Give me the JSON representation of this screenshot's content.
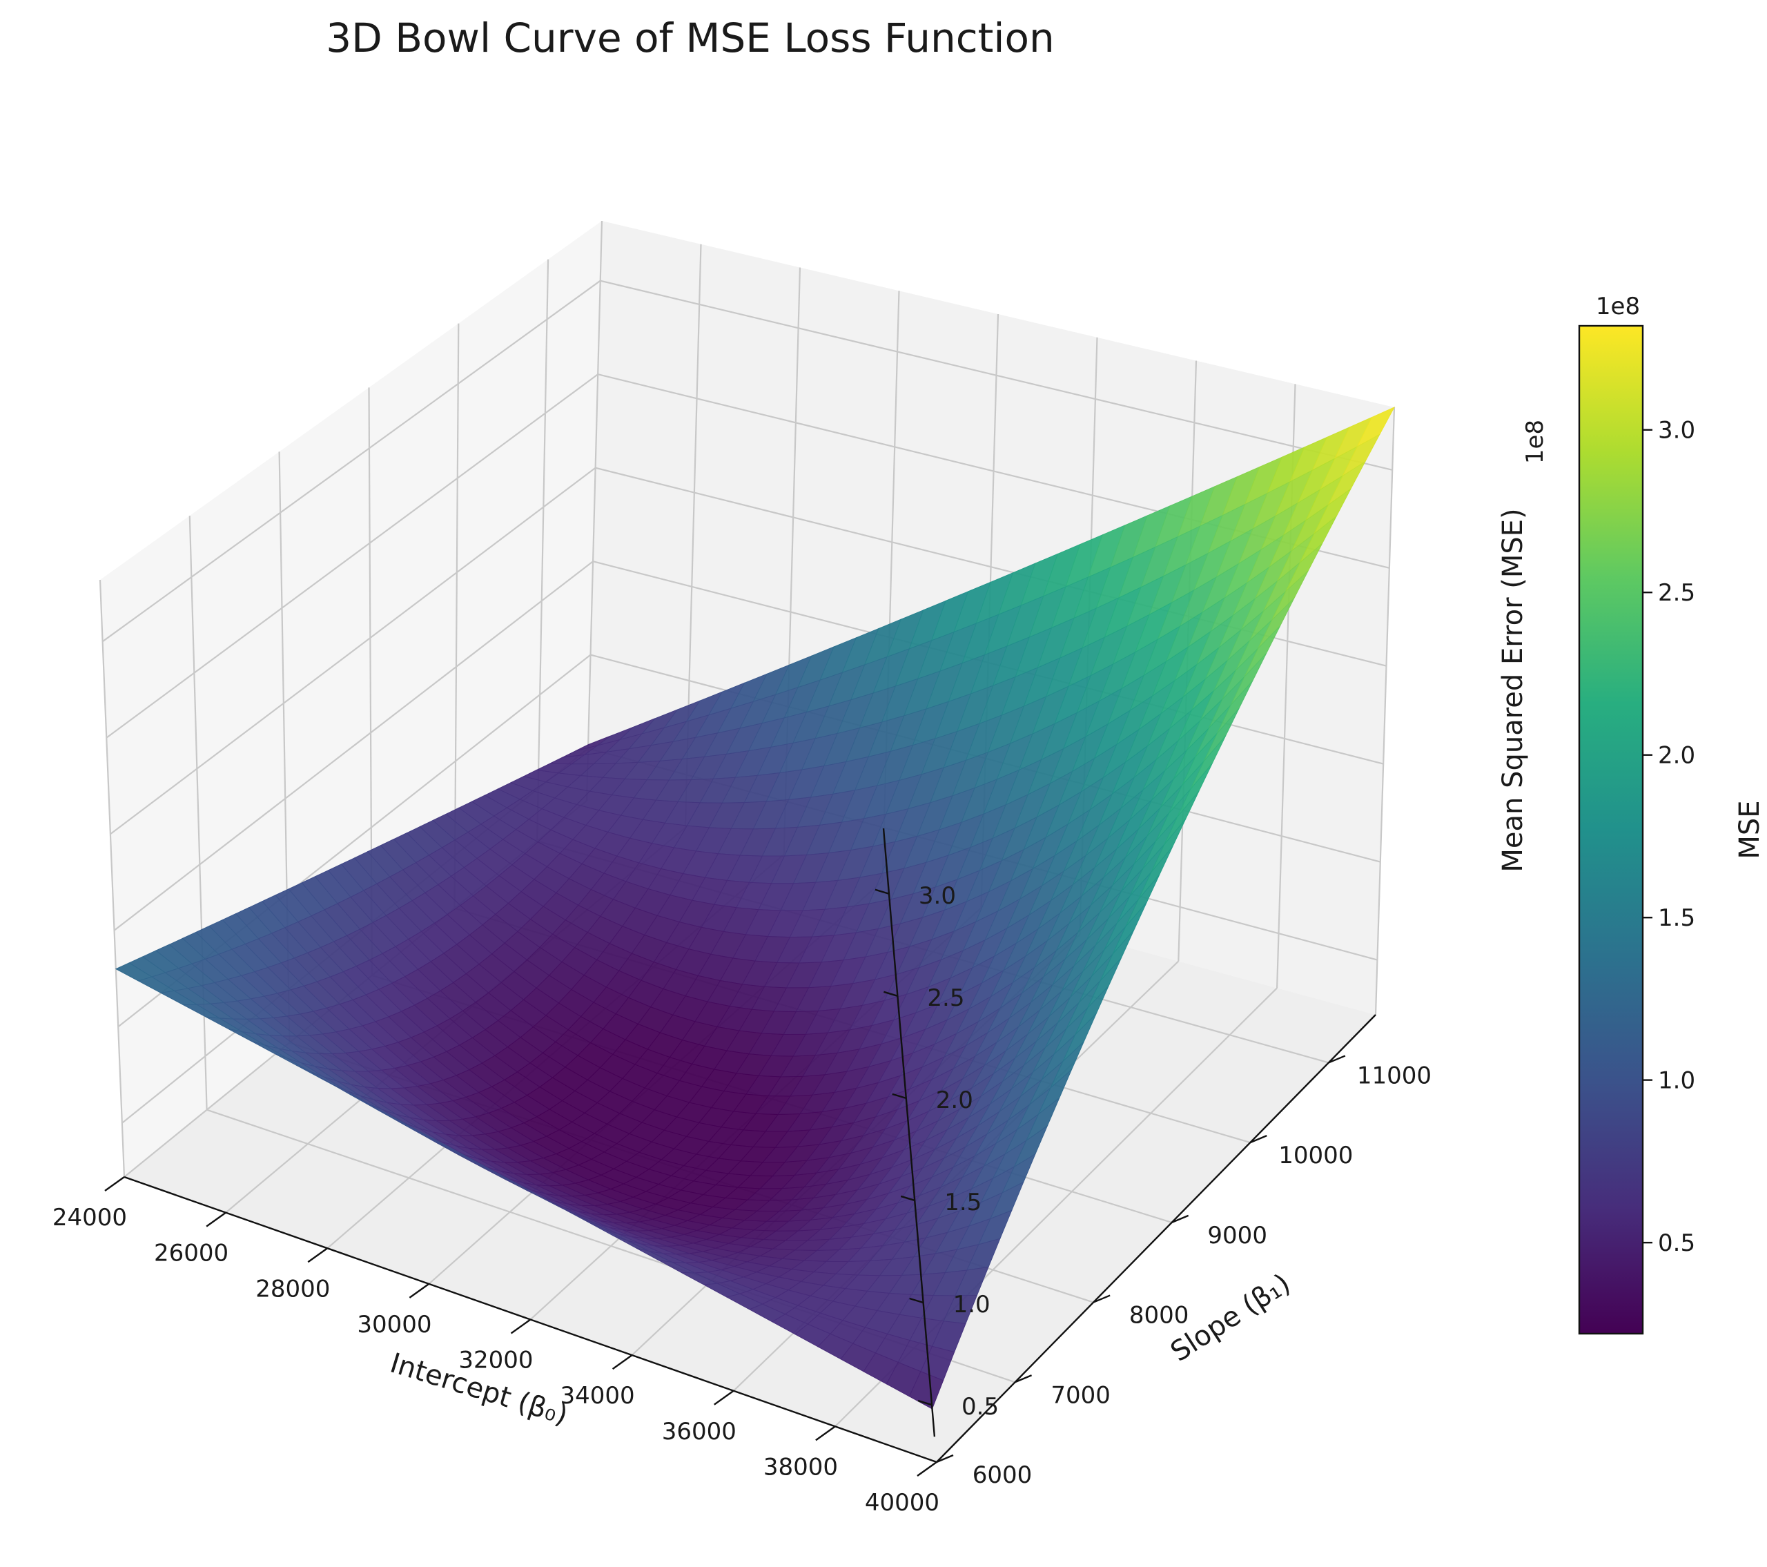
{
  "chart_data": {
    "type": "surface",
    "title": "3D Bowl Curve of MSE Loss Function",
    "xlabel": "Intercept (β₀)",
    "ylabel": "Slope (β₁)",
    "zlabel": "Mean Squared Error (MSE)",
    "z_offset_label": "1e8",
    "colormap": "viridis",
    "x_range": [
      24000,
      40000
    ],
    "y_range": [
      6000,
      11600
    ],
    "z_range": [
      0.22,
      3.32
    ],
    "x_ticks": [
      "24000",
      "26000",
      "28000",
      "30000",
      "32000",
      "34000",
      "36000",
      "38000",
      "40000"
    ],
    "y_ticks": [
      "6000",
      "7000",
      "8000",
      "9000",
      "10000",
      "11000"
    ],
    "z_ticks": [
      "0.5",
      "1.0",
      "1.5",
      "2.0",
      "2.5",
      "3.0"
    ],
    "surface_corner_values": [
      {
        "intercept": 24000,
        "slope": 6000,
        "mse": 1.3
      },
      {
        "intercept": 40000,
        "slope": 6000,
        "mse": 0.48
      },
      {
        "intercept": 24000,
        "slope": 11600,
        "mse": 0.52
      },
      {
        "intercept": 40000,
        "slope": 11600,
        "mse": 3.32
      }
    ],
    "surface_minimum_mse": 0.22,
    "colorbar": {
      "label": "MSE",
      "offset_label": "1e8",
      "range": [
        0.22,
        3.32
      ],
      "ticks": [
        "0.5",
        "1.0",
        "1.5",
        "2.0",
        "2.5",
        "3.0"
      ]
    }
  }
}
